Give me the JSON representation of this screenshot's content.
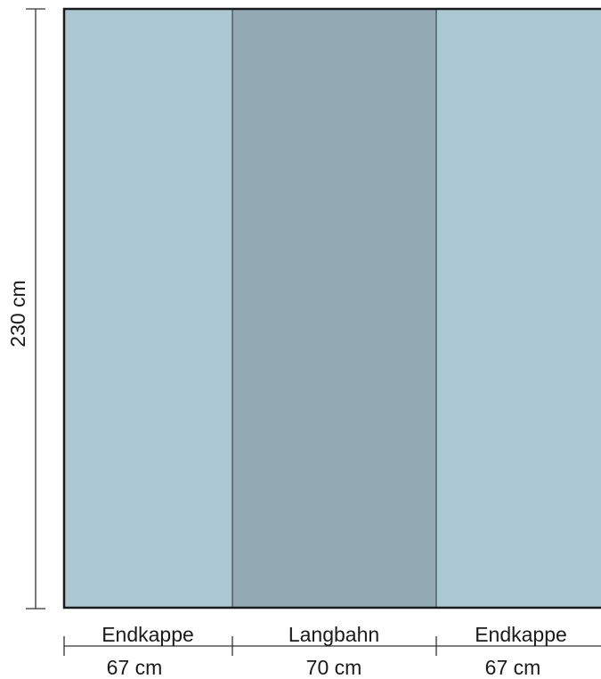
{
  "height": {
    "label": "230 cm"
  },
  "panels": [
    {
      "name": "Endkappe",
      "width": "67 cm",
      "color": "#abc7d2"
    },
    {
      "name": "Langbahn",
      "width": "70 cm",
      "color": "#93a9b3"
    },
    {
      "name": "Endkappe",
      "width": "67 cm",
      "color": "#abc7d2"
    }
  ],
  "colors": {
    "outline": "#1a1a1a",
    "divider": "#3a4a52",
    "dimension_line": "#333333"
  }
}
